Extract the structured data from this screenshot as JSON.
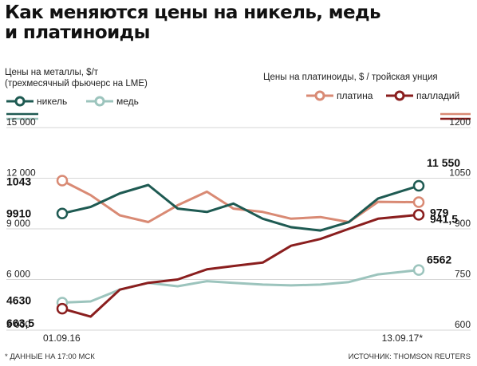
{
  "title_line1": "Как меняются цены на никель, медь",
  "title_line2": "и платиноиды",
  "left_axis_label_1": "Цены на металлы, $/т",
  "left_axis_label_2": "(трехмесячный фьючерс на LME)",
  "right_axis_label": "Цены на платиноиды, $ / тройская унция",
  "legend": [
    {
      "name": "никель",
      "color": "#1e5a52"
    },
    {
      "name": "медь",
      "color": "#9cc4bd"
    },
    {
      "name": "платина",
      "color": "#d98a74"
    },
    {
      "name": "палладий",
      "color": "#8a1e1e"
    }
  ],
  "footnote": "* ДАННЫЕ НА 17:00 МСК",
  "source": "ИСТОЧНИК: THOMSON REUTERS",
  "chart_data": {
    "type": "line",
    "x_start_label": "01.09.16",
    "x_end_label": "13.09.17*",
    "y_left": {
      "ticks": [
        3000,
        6000,
        9000,
        12000,
        15000
      ],
      "range": [
        3000,
        15000
      ]
    },
    "y_right": {
      "ticks": [
        600,
        750,
        900,
        1050,
        1200
      ],
      "range": [
        600,
        1200
      ]
    },
    "series": [
      {
        "name": "никель",
        "axis": "left",
        "color": "#1e5a52",
        "x": [
          "01.09.16",
          "01.10.16",
          "01.11.16",
          "01.12.16",
          "01.01.17",
          "01.02.17",
          "01.03.17",
          "01.04.17",
          "01.05.17",
          "01.06.17",
          "01.07.17",
          "01.08.17",
          "13.09.17"
        ],
        "y": [
          9910,
          10300,
          11100,
          11600,
          10200,
          10000,
          10500,
          9600,
          9100,
          8900,
          9400,
          10800,
          11550
        ],
        "start_label": "9910",
        "end_label": "11 550"
      },
      {
        "name": "медь",
        "axis": "left",
        "color": "#9cc4bd",
        "x": [
          "01.09.16",
          "01.10.16",
          "01.11.16",
          "01.12.16",
          "01.01.17",
          "01.02.17",
          "01.03.17",
          "01.04.17",
          "01.05.17",
          "01.06.17",
          "01.07.17",
          "01.08.17",
          "13.09.17"
        ],
        "y": [
          4630,
          4700,
          5400,
          5800,
          5600,
          5900,
          5800,
          5700,
          5650,
          5700,
          5850,
          6300,
          6562
        ],
        "start_label": "4630",
        "end_label": "6562"
      },
      {
        "name": "платина",
        "axis": "right",
        "color": "#d98a74",
        "x": [
          "01.09.16",
          "01.10.16",
          "01.11.16",
          "01.12.16",
          "01.01.17",
          "01.02.17",
          "01.03.17",
          "01.04.17",
          "01.05.17",
          "01.06.17",
          "01.07.17",
          "01.08.17",
          "13.09.17"
        ],
        "y": [
          1043,
          1000,
          940,
          920,
          970,
          1010,
          960,
          950,
          930,
          935,
          920,
          980,
          979
        ],
        "start_label": "1043",
        "end_label": "979"
      },
      {
        "name": "палладий",
        "axis": "right",
        "color": "#8a1e1e",
        "x": [
          "01.09.16",
          "01.10.16",
          "01.11.16",
          "01.12.16",
          "01.01.17",
          "01.02.17",
          "01.03.17",
          "01.04.17",
          "01.05.17",
          "01.06.17",
          "01.07.17",
          "01.08.17",
          "13.09.17"
        ],
        "y": [
          663.5,
          640,
          720,
          740,
          750,
          780,
          790,
          800,
          850,
          870,
          900,
          930,
          941.5
        ],
        "start_label": "663,5",
        "end_label": "941,5"
      }
    ]
  }
}
